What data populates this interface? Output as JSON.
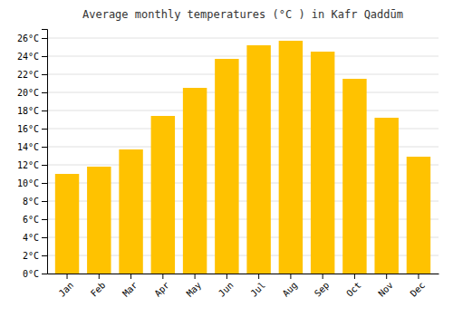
{
  "chart_data": {
    "type": "bar",
    "title": "Average monthly temperatures (°C ) in Kafr Qaddūm",
    "categories": [
      "Jan",
      "Feb",
      "Mar",
      "Apr",
      "May",
      "Jun",
      "Jul",
      "Aug",
      "Sep",
      "Oct",
      "Nov",
      "Dec"
    ],
    "values": [
      11.0,
      11.8,
      13.7,
      17.4,
      20.5,
      23.7,
      25.2,
      25.7,
      24.5,
      21.5,
      17.2,
      12.9
    ],
    "color": "#FFC200",
    "ylim": [
      0,
      27
    ],
    "yticks": [
      {
        "value": 0,
        "label": "0°C"
      },
      {
        "value": 2,
        "label": "2°C"
      },
      {
        "value": 4,
        "label": "4°C"
      },
      {
        "value": 6,
        "label": "6°C"
      },
      {
        "value": 8,
        "label": "8°C"
      },
      {
        "value": 10,
        "label": "10°C"
      },
      {
        "value": 12,
        "label": "12°C"
      },
      {
        "value": 14,
        "label": "14°C"
      },
      {
        "value": 16,
        "label": "16°C"
      },
      {
        "value": 18,
        "label": "18°C"
      },
      {
        "value": 20,
        "label": "20°C"
      },
      {
        "value": 22,
        "label": "22°C"
      },
      {
        "value": 24,
        "label": "24°C"
      },
      {
        "value": 26,
        "label": "26°C"
      }
    ],
    "grid": true
  }
}
